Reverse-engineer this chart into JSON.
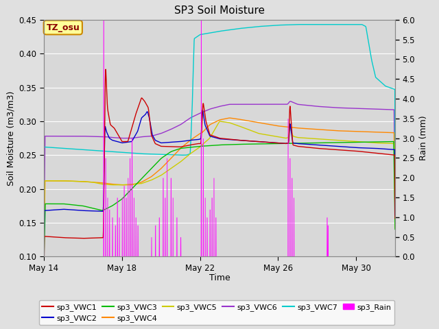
{
  "title": "SP3 Soil Moisture",
  "xlabel": "Time",
  "ylabel_left": "Soil Moisture (m3/m3)",
  "ylabel_right": "Rain (mm)",
  "xlim_days": [
    0,
    18
  ],
  "ylim_left": [
    0.1,
    0.45
  ],
  "ylim_right": [
    0.0,
    6.0
  ],
  "x_ticks_labels": [
    "May 14",
    "May 18",
    "May 22",
    "May 26",
    "May 30"
  ],
  "x_ticks_pos": [
    0,
    4,
    8,
    12,
    16
  ],
  "y_ticks_left": [
    0.1,
    0.15,
    0.2,
    0.25,
    0.3,
    0.35,
    0.4,
    0.45
  ],
  "y_ticks_right": [
    0.0,
    0.5,
    1.0,
    1.5,
    2.0,
    2.5,
    3.0,
    3.5,
    4.0,
    4.5,
    5.0,
    5.5,
    6.0
  ],
  "bg_color": "#e0e0e0",
  "plot_bg_color": "#d8d8d8",
  "grid_color": "#ffffff",
  "annotation_box": {
    "text": "TZ_osu",
    "facecolor": "#ffff99",
    "edgecolor": "#cc8800"
  },
  "colors": {
    "VWC1": "#cc0000",
    "VWC2": "#0000cc",
    "VWC3": "#00bb00",
    "VWC4": "#ff8800",
    "VWC5": "#cccc00",
    "VWC6": "#9933cc",
    "VWC7": "#00cccc",
    "Rain": "#ff00ff"
  }
}
